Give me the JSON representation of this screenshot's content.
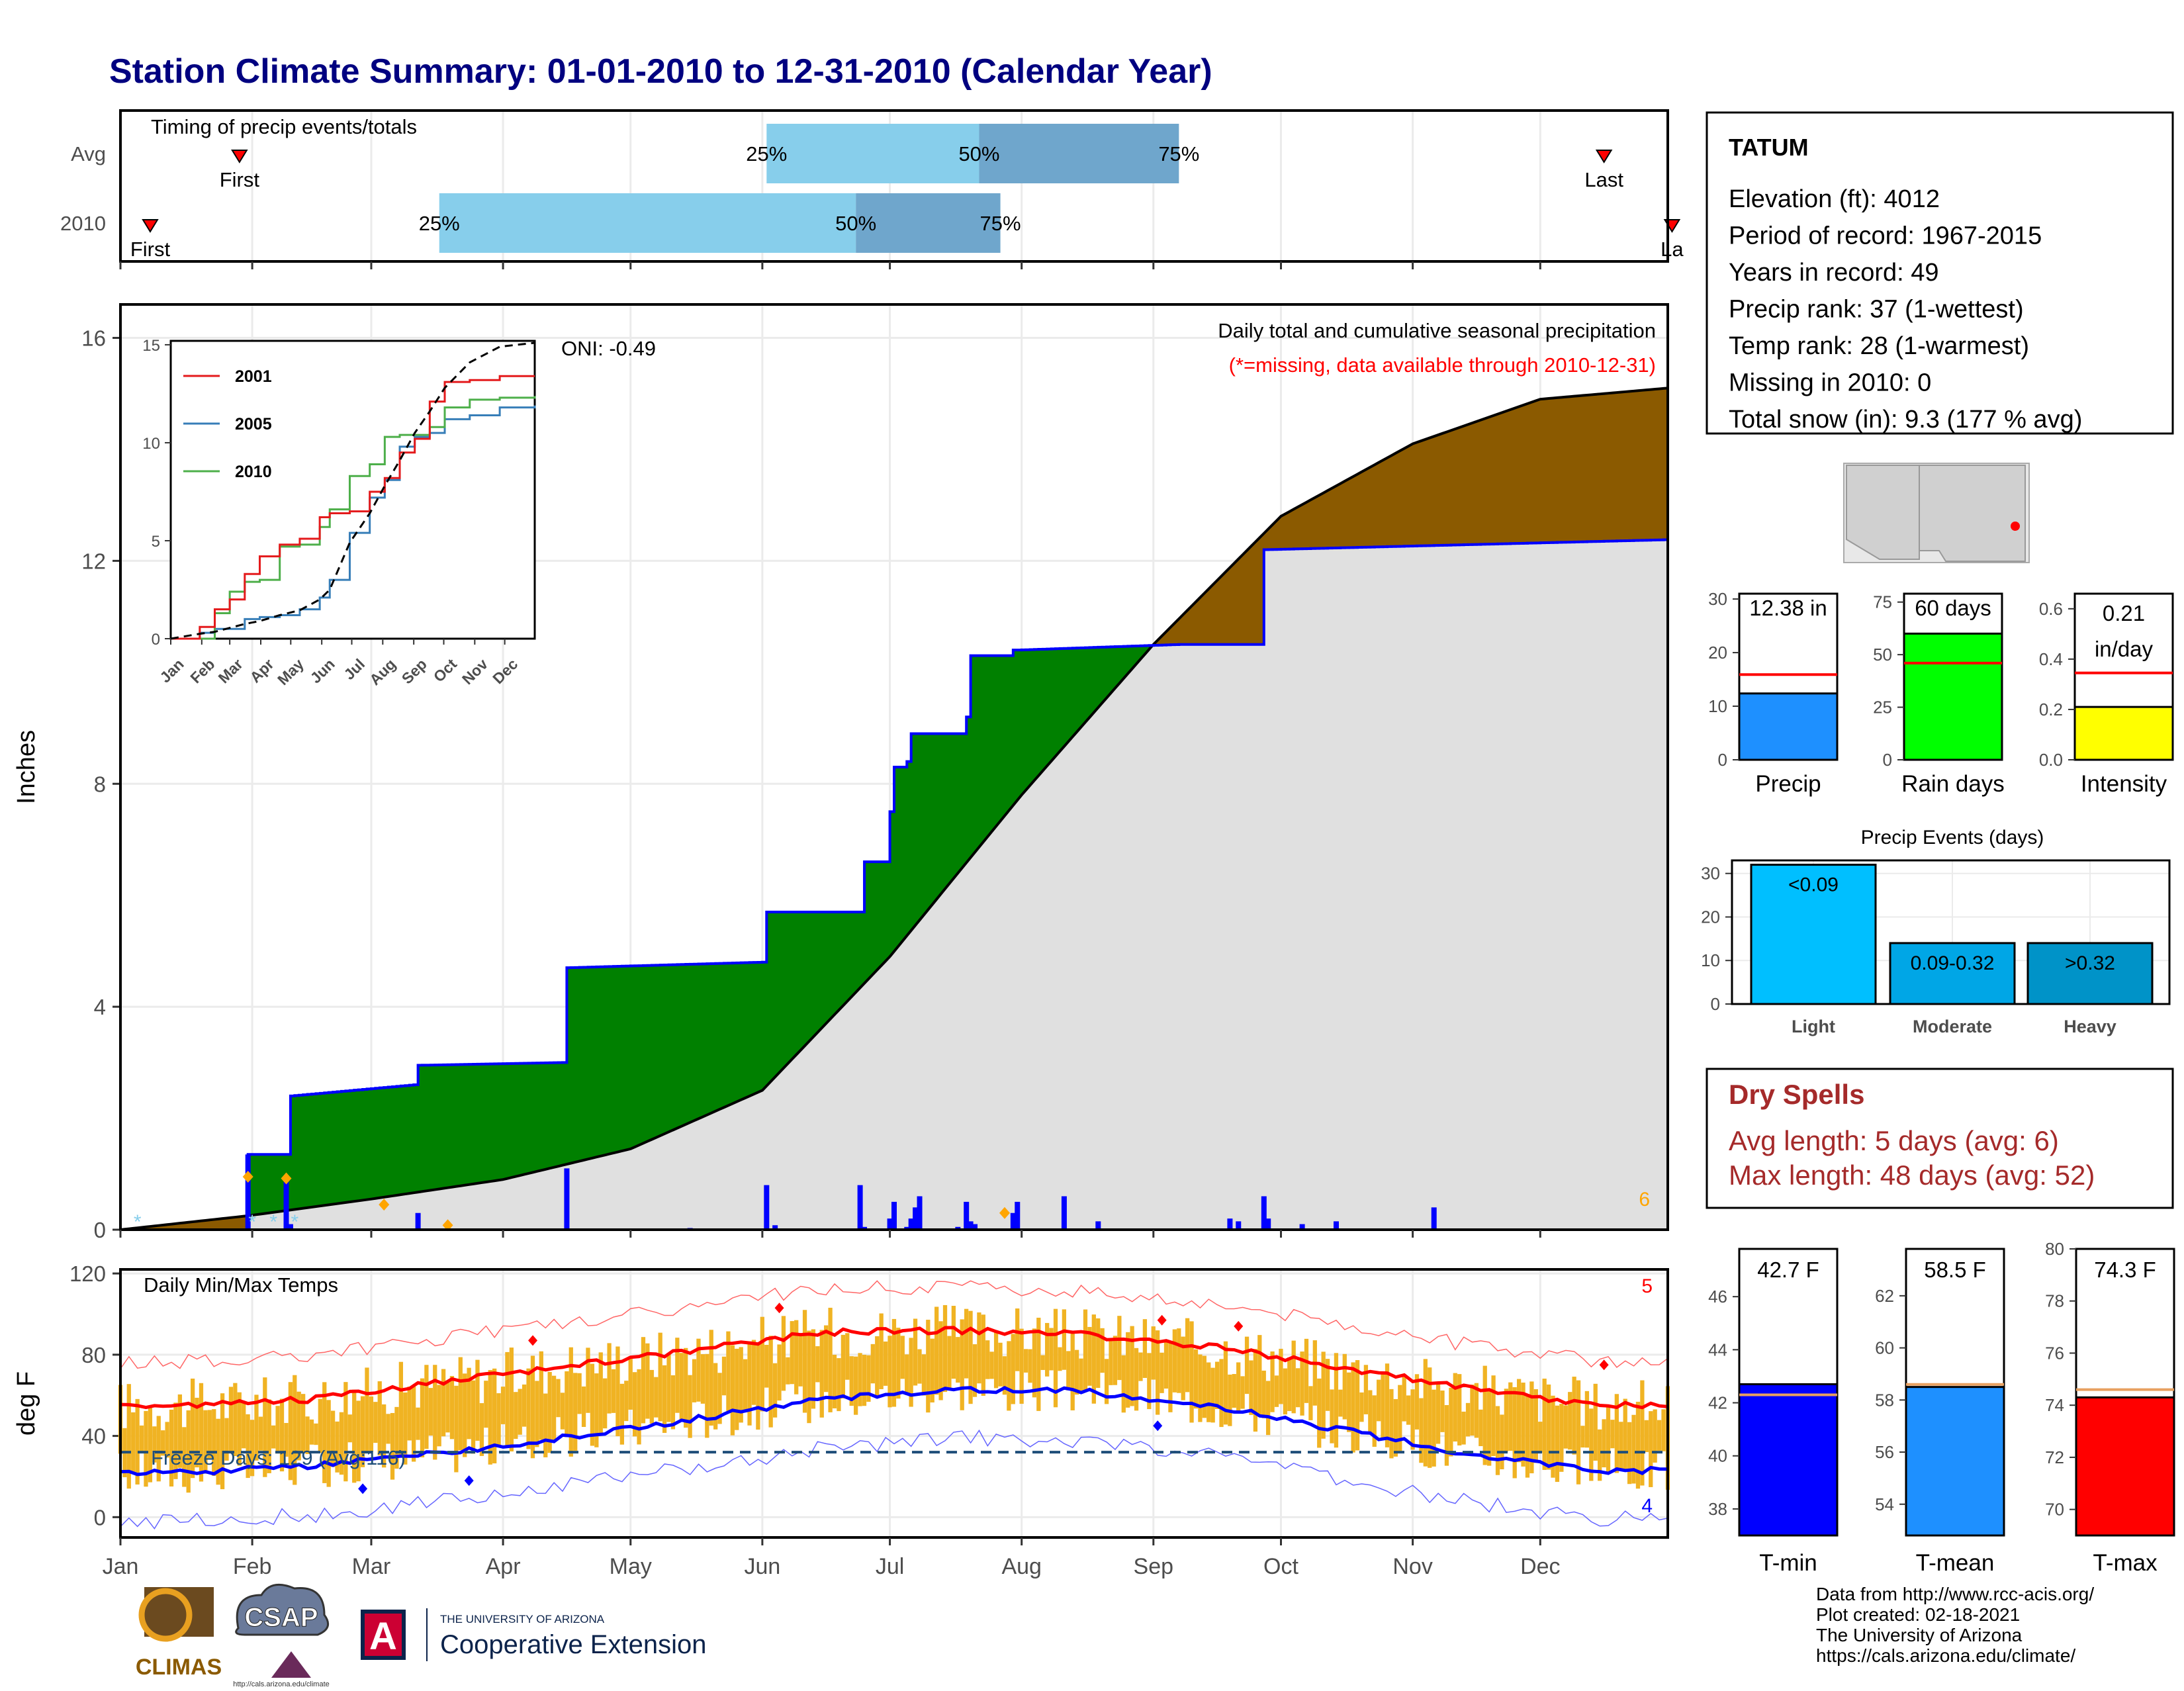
{
  "title": "Station Climate Summary: 01-01-2010 to 12-31-2010 (Calendar Year)",
  "colors": {
    "title": "#000080",
    "quartile_light": "#87ceeb",
    "quartile_dark": "#6fa6cc",
    "cum_surplus": "#008000",
    "cum_deficit": "#8b5a00",
    "cum_normal": "#e0e0e0",
    "daily_bar": "#0000ff",
    "temp_range": "#f0b323",
    "temp_max_avg": "#ff0000",
    "temp_min_avg": "#0000ff",
    "precip_bar": "#1e90ff",
    "raindays_bar": "#00ff00",
    "intensity_bar": "#ffff00",
    "light_bar": "#00bfff",
    "moderate_bar": "#00a6e6",
    "heavy_bar": "#0093c8",
    "dryspell_text": "#a52a2a",
    "tmin_bar": "#0000ff",
    "tmean_bar": "#1e90ff",
    "tmax_bar": "#ff0000",
    "avg_line": "#ff0000",
    "temp_avg_line": "#e8a060"
  },
  "timing": {
    "label": "Timing of precip events/totals",
    "rows": [
      {
        "name": "Avg",
        "first_label": "First",
        "last_label": "Last",
        "first_doy": 29,
        "last_doy": 350,
        "q25": 153,
        "q50": 203,
        "q75": 250,
        "q25_label": "25%",
        "q50_label": "50%",
        "q75_label": "75%"
      },
      {
        "name": "2010",
        "first_label": "First",
        "last_label": "La",
        "first_doy": 8,
        "last_doy": 366,
        "q25": 76,
        "q50": 174,
        "q75": 208,
        "q25_label": "25%",
        "q50_label": "50%",
        "q75_label": "75%"
      }
    ]
  },
  "precip_panel": {
    "ylabel": "Inches",
    "yticks": [
      0,
      4,
      8,
      12,
      16
    ],
    "ymax": 16.6,
    "oni": "ONI: -0.49",
    "caption": "Daily total and cumulative seasonal precipitation",
    "missing_note": "(*=missing, data available through 2010-12-31)",
    "corner_count": "6"
  },
  "inset": {
    "yticks": [
      0,
      5,
      10,
      15
    ],
    "months": [
      "Jan",
      "Feb",
      "Mar",
      "Apr",
      "May",
      "Jun",
      "Jul",
      "Aug",
      "Sep",
      "Oct",
      "Nov",
      "Dec"
    ],
    "legend": [
      "2001",
      "2005",
      "2010"
    ],
    "colors": [
      "#e41a1c",
      "#377eb8",
      "#4daf4a"
    ]
  },
  "temp_panel": {
    "ylabel": "deg F",
    "title": "Daily Min/Max Temps",
    "yticks": [
      0,
      40,
      80,
      120
    ],
    "freeze_label": "Freeze Days: 129 (Avg:116)",
    "freeze_line": 32,
    "corner_top": "5",
    "corner_bottom": "4"
  },
  "months": [
    "Jan",
    "Feb",
    "Mar",
    "Apr",
    "May",
    "Jun",
    "Jul",
    "Aug",
    "Sep",
    "Oct",
    "Nov",
    "Dec"
  ],
  "station": {
    "name": "TATUM",
    "lines": [
      "Elevation (ft): 4012",
      "Period of record: 1967-2015",
      "Years in record: 49",
      "Precip rank: 37 (1-wettest)",
      "Temp rank: 28 (1-warmest)",
      "Missing in 2010: 0",
      "Total snow (in): 9.3 (177 % avg)"
    ]
  },
  "summary_bars": [
    {
      "label": "Precip",
      "value_label": "12.38 in",
      "value": 12.38,
      "avg": 15.9,
      "ymax": 31,
      "ticks": [
        0,
        10,
        20,
        30
      ]
    },
    {
      "label": "Rain days",
      "value_label": "60 days",
      "value": 60,
      "avg": 46,
      "ymax": 79,
      "ticks": [
        0,
        25,
        50,
        75
      ]
    },
    {
      "label": "Intensity",
      "value_label": "0.21 in/day",
      "value_label_1": "0.21",
      "value_label_2": "in/day",
      "value": 0.21,
      "avg": 0.345,
      "ymax": 0.66,
      "ticks": [
        "0.0",
        "0.2",
        "0.4",
        "0.6"
      ]
    }
  ],
  "precip_events": {
    "title": "Precip Events (days)",
    "ticks": [
      0,
      10,
      20,
      30
    ],
    "ymax": 33,
    "bars": [
      {
        "label": "Light",
        "range": "<0.09",
        "value": 32
      },
      {
        "label": "Moderate",
        "range": "0.09-0.32",
        "value": 14
      },
      {
        "label": "Heavy",
        "range": ">0.32",
        "value": 14
      }
    ]
  },
  "dry_spells": {
    "title": "Dry Spells",
    "lines": [
      "Avg length: 5 days (avg: 6)",
      "Max length: 48 days (avg: 52)"
    ]
  },
  "temp_bars": [
    {
      "label": "T-min",
      "value_label": "42.7 F",
      "value": 42.7,
      "avg": 42.3,
      "ymin": 37,
      "ymax": 47.8,
      "ticks": [
        38,
        40,
        42,
        44,
        46
      ]
    },
    {
      "label": "T-mean",
      "value_label": "58.5 F",
      "value": 58.5,
      "avg": 58.6,
      "ymin": 52.8,
      "ymax": 63.8,
      "ticks": [
        54,
        56,
        58,
        60,
        62
      ]
    },
    {
      "label": "T-max",
      "value_label": "74.3 F",
      "value": 74.3,
      "avg": 74.6,
      "ymin": 69,
      "ymax": 80,
      "ticks": [
        70,
        72,
        74,
        76,
        78,
        80
      ]
    }
  ],
  "footer": [
    "Data from http://www.rcc-acis.org/",
    "Plot created: 02-18-2021",
    "The University of Arizona",
    "https://cals.arizona.edu/climate/"
  ],
  "logos": {
    "climas": "CLIMAS",
    "csap": "CSAP",
    "csap_url": "http://cals.arizona.edu/climate",
    "ua_small": "THE UNIVERSITY OF ARIZONA",
    "ua_big": "Cooperative Extension",
    "ua_letter": "A"
  },
  "chart_data": [
    {
      "type": "area",
      "title": "Daily total and cumulative seasonal precipitation",
      "ylabel": "Inches",
      "ylim": [
        0,
        16.6
      ],
      "x_unit": "day of year 2010",
      "series": [
        {
          "name": "cumulative 2010",
          "x": [
            1,
            30,
            31,
            40,
            41,
            70,
            71,
            105,
            106,
            152,
            153,
            175,
            176,
            182,
            183,
            186,
            187,
            200,
            201,
            211,
            212,
            250,
            270,
            365
          ],
          "values": [
            0,
            0,
            1.35,
            1.35,
            2.4,
            2.6,
            2.95,
            3.0,
            4.7,
            4.8,
            5.7,
            5.7,
            6.6,
            7.5,
            8.3,
            8.4,
            8.9,
            9.2,
            10.3,
            10.4,
            10.4,
            10.5,
            12.2,
            12.38
          ]
        },
        {
          "x": [
            1,
            31,
            60,
            91,
            121,
            152,
            182,
            213,
            244,
            274,
            305,
            335,
            365
          ],
          "values": [
            0,
            0.25,
            0.55,
            0.9,
            1.45,
            2.5,
            4.9,
            7.8,
            10.5,
            12.8,
            14.1,
            14.9,
            15.1
          ]
        }
      ]
    },
    {
      "type": "line",
      "title": "Daily Min/Max Temps",
      "ylabel": "deg F",
      "ylim": [
        -10,
        120
      ],
      "x_unit": "mid-month",
      "series": [
        {
          "x": [
            15,
            46,
            74,
            105,
            135,
            166,
            196,
            227,
            258,
            288,
            319,
            349
          ],
          "values": [
            55,
            58,
            66,
            74,
            82,
            91,
            92,
            90,
            84,
            74,
            63,
            55
          ]
        },
        {
          "x": [
            15,
            46,
            74,
            105,
            135,
            166,
            196,
            227,
            258,
            288,
            319,
            349
          ],
          "values": [
            22,
            25,
            31,
            39,
            48,
            58,
            63,
            62,
            55,
            43,
            31,
            23
          ]
        }
      ]
    }
  ]
}
